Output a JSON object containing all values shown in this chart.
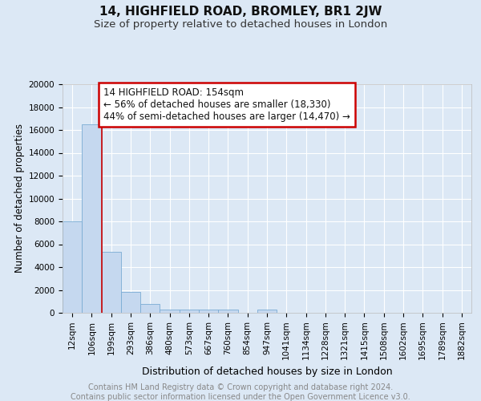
{
  "title": "14, HIGHFIELD ROAD, BROMLEY, BR1 2JW",
  "subtitle": "Size of property relative to detached houses in London",
  "xlabel": "Distribution of detached houses by size in London",
  "ylabel": "Number of detached properties",
  "footer_line1": "Contains HM Land Registry data © Crown copyright and database right 2024.",
  "footer_line2": "Contains public sector information licensed under the Open Government Licence v3.0.",
  "bar_labels": [
    "12sqm",
    "106sqm",
    "199sqm",
    "293sqm",
    "386sqm",
    "480sqm",
    "573sqm",
    "667sqm",
    "760sqm",
    "854sqm",
    "947sqm",
    "1041sqm",
    "1134sqm",
    "1228sqm",
    "1321sqm",
    "1415sqm",
    "1508sqm",
    "1602sqm",
    "1695sqm",
    "1789sqm",
    "1882sqm"
  ],
  "bar_values": [
    8000,
    16500,
    5300,
    1800,
    800,
    300,
    300,
    300,
    300,
    0,
    300,
    0,
    0,
    0,
    0,
    0,
    0,
    0,
    0,
    0,
    0
  ],
  "bar_color": "#c5d8ef",
  "bar_edge_color": "#7aacd4",
  "property_line_x": 1.5,
  "property_label": "14 HIGHFIELD ROAD: 154sqm",
  "annotation_line1": "← 56% of detached houses are smaller (18,330)",
  "annotation_line2": "44% of semi-detached houses are larger (14,470) →",
  "annotation_box_color": "#ffffff",
  "annotation_box_edge": "#cc0000",
  "property_line_color": "#cc0000",
  "ylim": [
    0,
    20000
  ],
  "yticks": [
    0,
    2000,
    4000,
    6000,
    8000,
    10000,
    12000,
    14000,
    16000,
    18000,
    20000
  ],
  "background_color": "#dce8f5",
  "plot_bg_color": "#dce8f5",
  "grid_color": "#ffffff",
  "title_fontsize": 11,
  "subtitle_fontsize": 9.5,
  "xlabel_fontsize": 9,
  "ylabel_fontsize": 8.5,
  "tick_fontsize": 7.5,
  "annotation_fontsize": 8.5,
  "footer_fontsize": 7
}
